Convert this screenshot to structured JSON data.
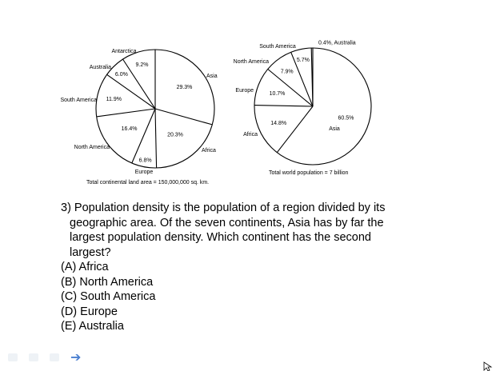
{
  "chart_data": [
    {
      "type": "pie",
      "caption": "Total continental land area = 150,000,000 sq. km.",
      "categories": [
        "Asia",
        "Africa",
        "Europe",
        "North America",
        "South America",
        "Australia",
        "Antarctica"
      ],
      "values": [
        29.3,
        20.3,
        6.8,
        16.4,
        11.9,
        6.0,
        9.2
      ],
      "labels": [
        "29.3%",
        "20.3%",
        "6.8%",
        "16.4%",
        "11.9%",
        "6.0%",
        "9.2%"
      ]
    },
    {
      "type": "pie",
      "caption": "Total world population = 7 billion",
      "categories": [
        "Asia",
        "Africa",
        "Europe",
        "North America",
        "South America",
        "Australia"
      ],
      "values": [
        60.5,
        14.8,
        10.7,
        7.9,
        5.7,
        0.4
      ],
      "labels": [
        "60.5%",
        "14.8%",
        "10.7%",
        "7.9%",
        "5.7%",
        "0.4%, Australia"
      ]
    }
  ],
  "question": {
    "stem": "3) Population density is the population of a region divided by its geographic area.  Of the seven continents, Asia has by far the largest population density.  Which continent has the second largest?",
    "options": [
      "(A) Africa",
      "(B) North America",
      "(C) South America",
      "(D) Europe",
      "(E) Australia"
    ]
  },
  "icons": {
    "next": "right-arrow-icon",
    "cursor": "mouse-cursor-icon"
  }
}
